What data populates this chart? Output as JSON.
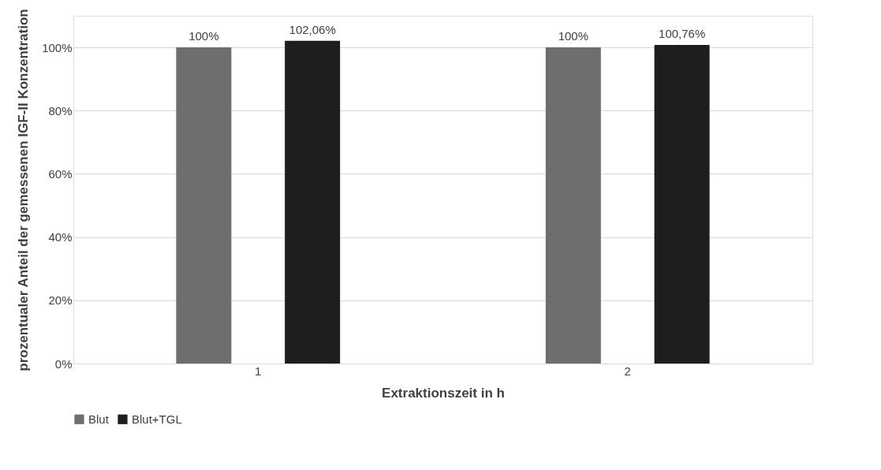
{
  "chart_data": {
    "type": "bar",
    "xlabel": "Extraktionszeit in h",
    "ylabel": "prozentualer Anteil der gemessenen IGF-II Konzentration",
    "categories": [
      "1",
      "2"
    ],
    "series": [
      {
        "name": "Blut",
        "color": "#6e6e6e",
        "values": [
          100,
          100
        ],
        "value_labels": [
          "100%",
          "100%"
        ]
      },
      {
        "name": "Blut+TGL",
        "color": "#1e1e1e",
        "values": [
          102.06,
          100.76
        ],
        "value_labels": [
          "102,06%",
          "100,76%"
        ]
      }
    ],
    "ylim": [
      0,
      110
    ],
    "yticks": [
      {
        "value": 0,
        "label": "0%"
      },
      {
        "value": 20,
        "label": "20%"
      },
      {
        "value": 40,
        "label": "40%"
      },
      {
        "value": 60,
        "label": "60%"
      },
      {
        "value": 80,
        "label": "80%"
      },
      {
        "value": 100,
        "label": "100%"
      }
    ],
    "grid": "y",
    "legend": "bottom"
  }
}
